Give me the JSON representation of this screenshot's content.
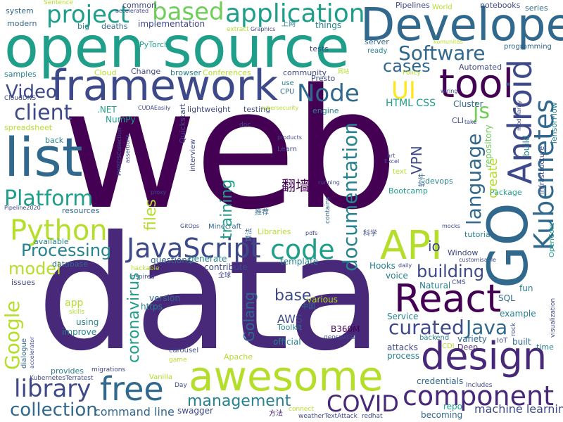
{
  "colors": {
    "background": "#ffffff",
    "palette": [
      "#440154",
      "#482878",
      "#3e4989",
      "#31688e",
      "#26828e",
      "#1f9e89",
      "#35b779",
      "#6ece58",
      "#b5de2b",
      "#fde725"
    ]
  },
  "words": {
    "web": "web",
    "data": "data",
    "open_source": "open source",
    "developer": "Developer",
    "framework": "framework",
    "list": "list",
    "awesome": "awesome",
    "react": "React",
    "design": "design",
    "api": "API",
    "go": "GO",
    "tool": "tool",
    "android": "Android",
    "kubernetes": "Kubernetes",
    "javascript": "JavaScript",
    "free": "free",
    "library": "library",
    "component": "component",
    "python": "Python",
    "node": "Node",
    "code": "code",
    "application": "application",
    "project": "project",
    "based": "based",
    "software": "Software",
    "platform": "Platform",
    "client": "client",
    "curated": "curated",
    "java": "Java",
    "covid": "COVID",
    "collection": "collection",
    "google": "Google",
    "documentation": "documentation",
    "language": "language",
    "processing": "Processing",
    "management": "management",
    "training": "training",
    "golang": "Golang",
    "coronavirus": "coronavirus",
    "building": "building",
    "video": "Video",
    "files": "files",
    "model": "model",
    "ui": "UI",
    "js": "js",
    "cases": "cases",
    "create": "create",
    "vpn": "VPN",
    "base": "base",
    "aws": "AWS",
    "io": "io",
    "command_line": "command line",
    "machine_learning": "machine learning",
    "fanqiang": "翻墙",
    "html_css": "HTML CSS",
    "repository": "repository",
    "devops": "devops",
    "bootcamp": "Bootcamp",
    "package": "Package",
    "hooks": "Hooks",
    "voice": "voice",
    "natural": "Natural",
    "sql": "SQL",
    "fun": "fun",
    "example": "example",
    "variety": "variety",
    "built": "built",
    "iot": "IoT",
    "time": "time",
    "deep": "Deep",
    "cdi": "CDI",
    "backend": "backend",
    "service": "Service",
    "attacks": "attacks",
    "process": "process",
    "credentials": "credentials",
    "includes": "Includes",
    "repo": "repo",
    "becoming": "becoming",
    "swagger": "swagger",
    "fangfa": "方法",
    "connect": "connect",
    "weather_text_attack": "weatherTextAttack",
    "redhat": "redhat",
    "kubernetes_terratest": "KubernetesTerratest",
    "provides": "provides",
    "migrations": "migrations",
    "vanilla": "Vanilla",
    "day": "Day",
    "apache": "Apache",
    "official": "official",
    "b360m": "B360M",
    "toolkit": "Toolkit",
    "geospatial": "geospatial",
    "zhongguo": "中国",
    "various": "various",
    "carousel": "carousel",
    "game": "game",
    "using": "using",
    "improve": "improve",
    "skills": "skills",
    "dialogue": "dialogue",
    "accelerator": "accelerator",
    "issues": "issues",
    "database": "database",
    "available": "available",
    "questions": "questions",
    "generate": "generate",
    "contribute": "contribute",
    "template": "template",
    "quanqiu": "全球",
    "hackable": "hackable",
    "inspired": "inspired",
    "version": "version",
    "https": "https",
    "app": "app",
    "sentence": "Sentence",
    "accelerated": "accelerated",
    "common": "common",
    "system": "system",
    "modern": "modern",
    "big": "big",
    "deaths": "deaths",
    "implementation": "implementation",
    "extract": "extract",
    "graphics": "Graphics",
    "shangwang": "上网",
    "things": "things",
    "pipelines": "Pipelines",
    "world": "World",
    "notebooks": "notebooks",
    "series": "series",
    "tests": "tests",
    "server": "server",
    "ready": "ready",
    "komunitas": "komunitas",
    "programming": "programming",
    "automated": "Automated",
    "policy": "Policy",
    "pytorch": "PyTorch",
    "samples": "samples",
    "cloud": "Cloud",
    "change": "Change",
    "browser": "browser",
    "conferences": "Conferences",
    "community": "community",
    "presto": "Presto",
    "wangzhan": "网站",
    "use": "use",
    "cpu": "CPU",
    "cloud_dns": "CloudDNS",
    "net": ".NET",
    "cuda_easily": "CUDAEasily",
    "numpy": "NumPy",
    "quickstart": "Quickstart",
    "lightweight": "lightweight",
    "testing": "testing",
    "cybersecurity": "cybersecurity",
    "engine": "engine",
    "cluster": "Cluster",
    "wiring": "wiring",
    "modularity": "modularity",
    "tensorflow": "TensorFlow",
    "cli": "CLI",
    "take": "take",
    "infrastructure": "infrastructure",
    "spreadsheet": "spreadsheet",
    "doc": "doc",
    "back": "back",
    "php_ids_collection": "PHPIDSCollection",
    "assertions": "assertions",
    "interview": "interview",
    "products": "products",
    "learn": "Learn",
    "art": "art",
    "excel": "Excel",
    "ruanjian": "软件",
    "text": "text",
    "running": "running",
    "proxy": "proxy",
    "pipeline2020": "Pipeline2020",
    "resources": "resources",
    "gitops": "GitOps",
    "minecraft": "Minecraft",
    "tuijian": "推荐",
    "libraries": "Libraries",
    "pdfs": "pdfs",
    "contains": "contains",
    "suanfa": "算法",
    "kexue": "科学",
    "tutorial": "tutorial",
    "window": "Window",
    "customisable": "customisable",
    "mocks": "mocks",
    "daily": "daily",
    "cms": "CMS",
    "opencore": "OpenCore",
    "visualization": "visualization",
    "rock": "rock",
    "build": "build"
  }
}
